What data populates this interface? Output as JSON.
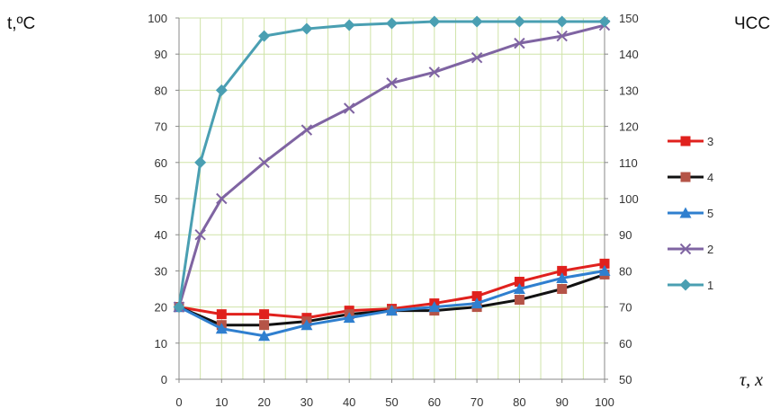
{
  "chart_data": {
    "type": "line",
    "ylabel": "t,ºC",
    "y2label": "ЧСС",
    "xlabel": "τ, x",
    "xlim": [
      0,
      100
    ],
    "ylim": [
      0,
      100
    ],
    "y2lim": [
      50,
      150
    ],
    "x_ticks": [
      0,
      10,
      20,
      30,
      40,
      50,
      60,
      70,
      80,
      90,
      100
    ],
    "y_ticks": [
      0,
      10,
      20,
      30,
      40,
      50,
      60,
      70,
      80,
      90,
      100
    ],
    "y2_ticks": [
      50,
      60,
      70,
      80,
      90,
      100,
      110,
      120,
      130,
      140,
      150
    ],
    "grid": true,
    "legend_position": "right",
    "series": [
      {
        "name": "3",
        "color": "#e0211d",
        "marker": "square",
        "axis": "left",
        "x": [
          0,
          10,
          20,
          30,
          40,
          50,
          60,
          70,
          80,
          90,
          100
        ],
        "y": [
          20,
          18,
          18,
          17,
          19,
          19.5,
          21,
          23,
          27,
          30,
          32
        ]
      },
      {
        "name": "4",
        "color": "#111111",
        "marker": "square-brown",
        "axis": "left",
        "x": [
          0,
          10,
          20,
          30,
          40,
          50,
          60,
          70,
          80,
          90,
          100
        ],
        "y": [
          20,
          15,
          15,
          16,
          18,
          19,
          19,
          20,
          22,
          25,
          29
        ]
      },
      {
        "name": "5",
        "color": "#2f7fcf",
        "marker": "triangle",
        "axis": "left",
        "x": [
          0,
          10,
          20,
          30,
          40,
          50,
          60,
          70,
          80,
          90,
          100
        ],
        "y": [
          20,
          14,
          12,
          15,
          17,
          19,
          20,
          21,
          25,
          28,
          30
        ]
      },
      {
        "name": "2",
        "color": "#7f64a2",
        "marker": "x",
        "axis": "left",
        "x": [
          0,
          5,
          10,
          20,
          30,
          40,
          50,
          60,
          70,
          80,
          90,
          100
        ],
        "y": [
          20,
          40,
          50,
          60,
          69,
          75,
          82,
          85,
          89,
          93,
          95,
          98
        ]
      },
      {
        "name": "1",
        "color": "#4a9fb2",
        "marker": "diamond",
        "axis": "left",
        "x": [
          0,
          5,
          10,
          20,
          30,
          40,
          50,
          60,
          70,
          80,
          90,
          100
        ],
        "y": [
          20,
          60,
          80,
          95,
          97,
          98,
          98.5,
          99,
          99,
          99,
          99,
          99
        ]
      }
    ]
  }
}
